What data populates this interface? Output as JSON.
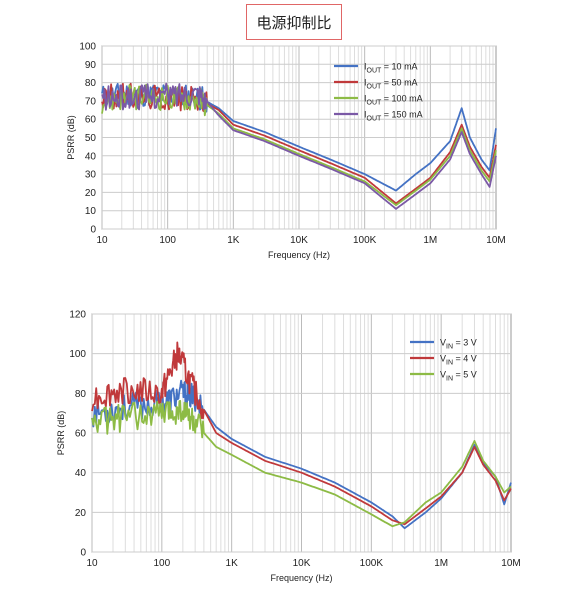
{
  "page_title": "电源抑制比",
  "chart_data": [
    {
      "type": "line",
      "xscale": "log",
      "xlim": [
        10,
        10000000
      ],
      "ylim": [
        0,
        100
      ],
      "yticks": [
        0,
        10,
        20,
        30,
        40,
        50,
        60,
        70,
        80,
        90,
        100
      ],
      "xticks": [
        10,
        100,
        1000,
        10000,
        100000,
        1000000,
        10000000
      ],
      "xtick_labels": [
        "10",
        "100",
        "1K",
        "10K",
        "100K",
        "1M",
        "10M"
      ],
      "xlabel": "Frequency (Hz)",
      "ylabel": "PSRR (dB)",
      "grid": true,
      "legend": "top-right",
      "series": [
        {
          "name": "10 mA",
          "prefix": "I",
          "sub": "OUT",
          "color": "#4472c4",
          "points": [
            [
              10,
              72
            ],
            [
              30,
              74
            ],
            [
              100,
              73
            ],
            [
              300,
              72
            ],
            [
              600,
              66
            ],
            [
              1000,
              59
            ],
            [
              3000,
              53
            ],
            [
              10000,
              45
            ],
            [
              30000,
              38
            ],
            [
              100000,
              30
            ],
            [
              300000,
              21
            ],
            [
              600000,
              30
            ],
            [
              1000000,
              36
            ],
            [
              2000000,
              48
            ],
            [
              3000000,
              66
            ],
            [
              4000000,
              50
            ],
            [
              6000000,
              38
            ],
            [
              8000000,
              32
            ],
            [
              10000000,
              55
            ]
          ]
        },
        {
          "name": "50 mA",
          "prefix": "I",
          "sub": "OUT",
          "color": "#c0393b",
          "points": [
            [
              10,
              72
            ],
            [
              30,
              73
            ],
            [
              100,
              72
            ],
            [
              300,
              71
            ],
            [
              600,
              65
            ],
            [
              1000,
              57
            ],
            [
              3000,
              51
            ],
            [
              10000,
              43
            ],
            [
              30000,
              36
            ],
            [
              100000,
              28
            ],
            [
              300000,
              14
            ],
            [
              600000,
              22
            ],
            [
              1000000,
              28
            ],
            [
              2000000,
              42
            ],
            [
              3000000,
              57
            ],
            [
              4000000,
              45
            ],
            [
              6000000,
              34
            ],
            [
              8000000,
              28
            ],
            [
              10000000,
              46
            ]
          ]
        },
        {
          "name": "100 mA",
          "prefix": "I",
          "sub": "OUT",
          "color": "#8dbb45",
          "points": [
            [
              10,
              70
            ],
            [
              30,
              72
            ],
            [
              100,
              72
            ],
            [
              300,
              71
            ],
            [
              600,
              63
            ],
            [
              1000,
              55
            ],
            [
              3000,
              49
            ],
            [
              10000,
              41
            ],
            [
              30000,
              34
            ],
            [
              100000,
              26
            ],
            [
              300000,
              13
            ],
            [
              600000,
              21
            ],
            [
              1000000,
              27
            ],
            [
              2000000,
              40
            ],
            [
              3000000,
              55
            ],
            [
              4000000,
              43
            ],
            [
              6000000,
              32
            ],
            [
              8000000,
              26
            ],
            [
              10000000,
              43
            ]
          ]
        },
        {
          "name": "150 mA",
          "prefix": "I",
          "sub": "OUT",
          "color": "#7b59a6",
          "points": [
            [
              10,
              71
            ],
            [
              30,
              72
            ],
            [
              100,
              73
            ],
            [
              300,
              75
            ],
            [
              600,
              62
            ],
            [
              1000,
              54
            ],
            [
              3000,
              48
            ],
            [
              10000,
              40
            ],
            [
              30000,
              33
            ],
            [
              100000,
              25
            ],
            [
              300000,
              11
            ],
            [
              600000,
              19
            ],
            [
              1000000,
              25
            ],
            [
              2000000,
              38
            ],
            [
              3000000,
              53
            ],
            [
              4000000,
              41
            ],
            [
              6000000,
              30
            ],
            [
              8000000,
              23
            ],
            [
              10000000,
              40
            ]
          ]
        }
      ]
    },
    {
      "type": "line",
      "xscale": "log",
      "xlim": [
        10,
        10000000
      ],
      "ylim": [
        0,
        120
      ],
      "yticks": [
        0,
        20,
        40,
        60,
        80,
        100,
        120
      ],
      "xticks": [
        10,
        100,
        1000,
        10000,
        100000,
        1000000,
        10000000
      ],
      "xtick_labels": [
        "10",
        "100",
        "1K",
        "10K",
        "100K",
        "1M",
        "10M"
      ],
      "xlabel": "Frequency (Hz)",
      "ylabel": "PSRR (dB)",
      "grid": true,
      "legend": "top-right",
      "series": [
        {
          "name": "3 V",
          "prefix": "V",
          "sub": "IN",
          "color": "#4472c4",
          "points": [
            [
              10,
              70
            ],
            [
              30,
              73
            ],
            [
              100,
              75
            ],
            [
              200,
              80
            ],
            [
              300,
              78
            ],
            [
              600,
              63
            ],
            [
              1000,
              57
            ],
            [
              3000,
              48
            ],
            [
              10000,
              42
            ],
            [
              30000,
              35
            ],
            [
              100000,
              25
            ],
            [
              200000,
              18
            ],
            [
              300000,
              12
            ],
            [
              600000,
              20
            ],
            [
              1000000,
              27
            ],
            [
              2000000,
              40
            ],
            [
              3000000,
              54
            ],
            [
              4000000,
              45
            ],
            [
              6000000,
              38
            ],
            [
              8000000,
              24
            ],
            [
              10000000,
              35
            ]
          ]
        },
        {
          "name": "4 V",
          "prefix": "V",
          "sub": "IN",
          "color": "#c0393b",
          "points": [
            [
              10,
              78
            ],
            [
              30,
              82
            ],
            [
              100,
              80
            ],
            [
              170,
              100
            ],
            [
              300,
              80
            ],
            [
              600,
              60
            ],
            [
              1000,
              55
            ],
            [
              3000,
              46
            ],
            [
              10000,
              40
            ],
            [
              30000,
              33
            ],
            [
              100000,
              23
            ],
            [
              200000,
              16
            ],
            [
              300000,
              14
            ],
            [
              600000,
              22
            ],
            [
              1000000,
              28
            ],
            [
              2000000,
              40
            ],
            [
              3000000,
              53
            ],
            [
              4000000,
              44
            ],
            [
              6000000,
              36
            ],
            [
              8000000,
              26
            ],
            [
              10000000,
              32
            ]
          ]
        },
        {
          "name": "5 V",
          "prefix": "V",
          "sub": "IN",
          "color": "#8dbb45",
          "points": [
            [
              10,
              65
            ],
            [
              30,
              68
            ],
            [
              100,
              70
            ],
            [
              200,
              72
            ],
            [
              300,
              65
            ],
            [
              600,
              53
            ],
            [
              1000,
              49
            ],
            [
              3000,
              40
            ],
            [
              10000,
              35
            ],
            [
              30000,
              29
            ],
            [
              100000,
              19
            ],
            [
              200000,
              13
            ],
            [
              300000,
              15
            ],
            [
              600000,
              25
            ],
            [
              1000000,
              30
            ],
            [
              2000000,
              43
            ],
            [
              3000000,
              56
            ],
            [
              4000000,
              46
            ],
            [
              6000000,
              38
            ],
            [
              8000000,
              30
            ],
            [
              10000000,
              33
            ]
          ]
        }
      ]
    }
  ]
}
